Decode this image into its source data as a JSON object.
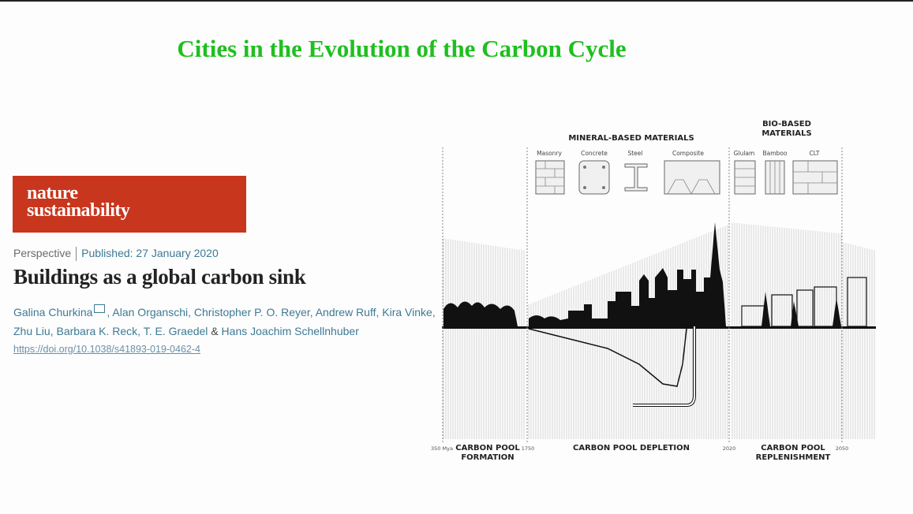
{
  "slide": {
    "title": "Cities in the Evolution of the Carbon Cycle"
  },
  "journal": {
    "logo_line1": "nature",
    "logo_line2": "sustainability",
    "brand_color": "#c8361d"
  },
  "article": {
    "type": "Perspective",
    "published": "Published: 27 January 2020",
    "title": "Buildings as a global carbon sink",
    "authors_line1_first": "Galina Churkina",
    "authors_line1_rest": ", Alan Organschi, Christopher P. O. Reyer, Andrew Ruff, Kira Vinke,",
    "authors_line2": "Zhu Liu, Barbara K. Reck, T. E. Graedel",
    "authors_amp": "&",
    "authors_last": "Hans Joachim Schellnhuber",
    "doi": "https://doi.org/10.1038/s41893-019-0462-4"
  },
  "figure": {
    "mineral_heading": "MINERAL-BASED MATERIALS",
    "bio_heading_1": "BIO-BASED",
    "bio_heading_2": "MATERIALS",
    "materials": [
      "Masonry",
      "Concrete",
      "Steel",
      "Composite",
      "Glulam",
      "Bamboo",
      "CLT"
    ],
    "timeline": {
      "t0": "350 Mya",
      "t1": "1750",
      "t2": "2020",
      "t3": "2050",
      "phase1_a": "CARBON POOL",
      "phase1_b": "FORMATION",
      "phase2": "CARBON POOL DEPLETION",
      "phase3_a": "CARBON POOL",
      "phase3_b": "REPLENISHMENT"
    }
  }
}
